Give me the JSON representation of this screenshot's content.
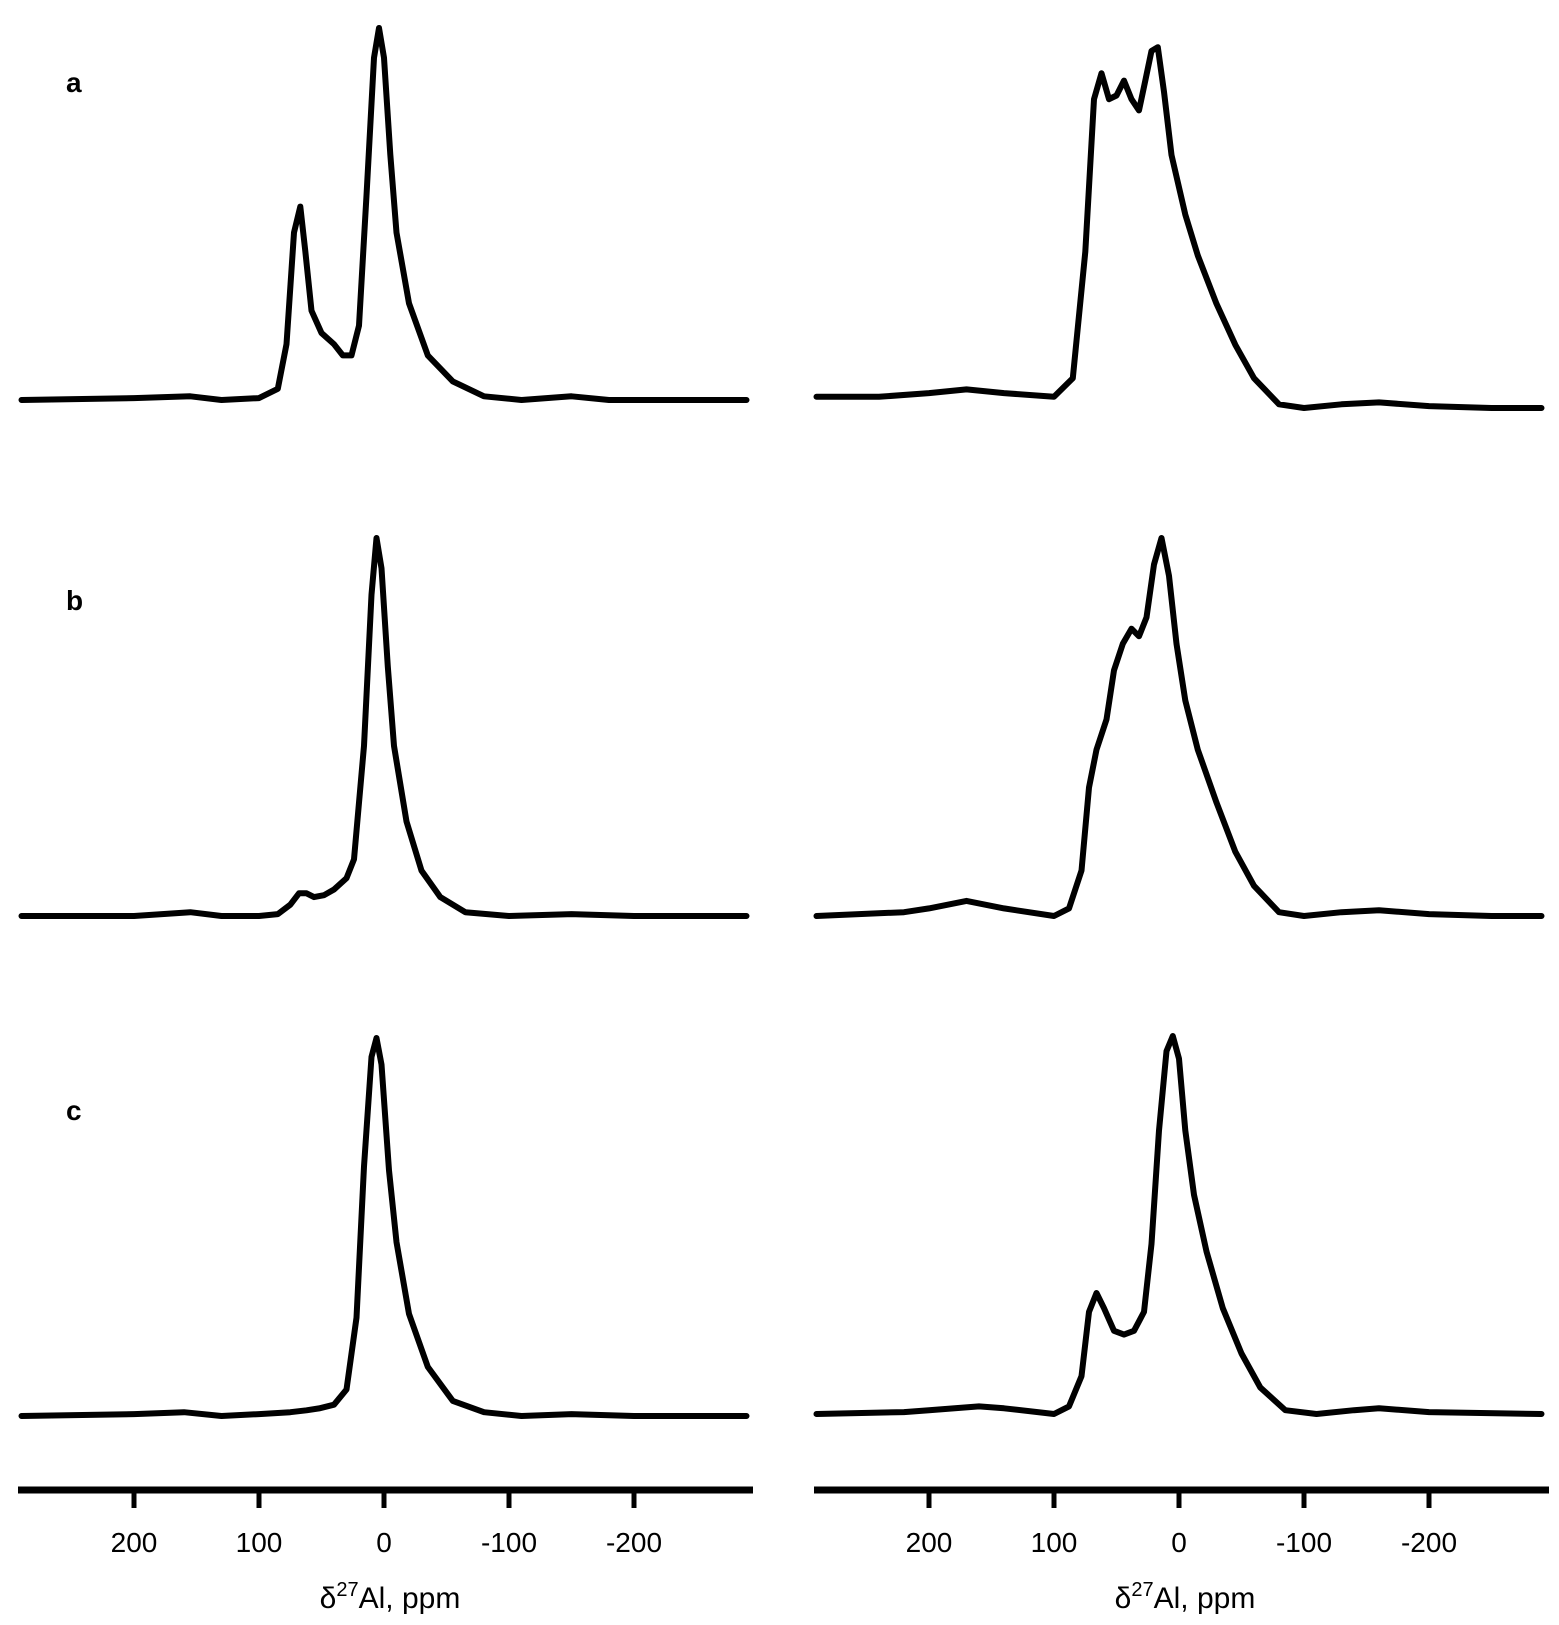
{
  "figure": {
    "panel_labels": [
      "a",
      "b",
      "c"
    ]
  },
  "chart_data": [
    {
      "type": "line",
      "panel": "a",
      "column": "left",
      "xlabel": "δ27Al, ppm",
      "xlim": [
        290,
        -290
      ],
      "x_reversed": true,
      "ticks": [
        200,
        100,
        0,
        -100,
        -200
      ],
      "tick_labels": [
        "200",
        "100",
        "0",
        "-100",
        "-200"
      ],
      "series": [
        {
          "values": [
            [
              290,
              0
            ],
            [
              200,
              0.005
            ],
            [
              155,
              0.01
            ],
            [
              130,
              0
            ],
            [
              100,
              0.005
            ],
            [
              85,
              0.03
            ],
            [
              78,
              0.15
            ],
            [
              72,
              0.45
            ],
            [
              67,
              0.52
            ],
            [
              63,
              0.4
            ],
            [
              58,
              0.24
            ],
            [
              50,
              0.18
            ],
            [
              40,
              0.15
            ],
            [
              33,
              0.12
            ],
            [
              26,
              0.12
            ],
            [
              20,
              0.2
            ],
            [
              14,
              0.55
            ],
            [
              8,
              0.92
            ],
            [
              4,
              1.0
            ],
            [
              0,
              0.92
            ],
            [
              -5,
              0.66
            ],
            [
              -10,
              0.45
            ],
            [
              -20,
              0.26
            ],
            [
              -35,
              0.12
            ],
            [
              -55,
              0.05
            ],
            [
              -80,
              0.01
            ],
            [
              -110,
              0
            ],
            [
              -150,
              0.01
            ],
            [
              -180,
              0
            ],
            [
              -290,
              0
            ]
          ]
        }
      ]
    },
    {
      "type": "line",
      "panel": "a",
      "column": "right",
      "xlabel": "δ27Al, ppm",
      "xlim": [
        290,
        -290
      ],
      "x_reversed": true,
      "ticks": [
        200,
        100,
        0,
        -100,
        -200
      ],
      "tick_labels": [
        "200",
        "100",
        "0",
        "-100",
        "-200"
      ],
      "series": [
        {
          "values": [
            [
              290,
              0.03
            ],
            [
              240,
              0.03
            ],
            [
              200,
              0.04
            ],
            [
              170,
              0.05
            ],
            [
              140,
              0.04
            ],
            [
              100,
              0.03
            ],
            [
              85,
              0.08
            ],
            [
              75,
              0.42
            ],
            [
              68,
              0.83
            ],
            [
              62,
              0.9
            ],
            [
              56,
              0.83
            ],
            [
              50,
              0.84
            ],
            [
              44,
              0.88
            ],
            [
              38,
              0.83
            ],
            [
              32,
              0.8
            ],
            [
              27,
              0.88
            ],
            [
              22,
              0.96
            ],
            [
              17,
              0.97
            ],
            [
              12,
              0.85
            ],
            [
              6,
              0.68
            ],
            [
              -5,
              0.52
            ],
            [
              -15,
              0.41
            ],
            [
              -30,
              0.28
            ],
            [
              -45,
              0.17
            ],
            [
              -60,
              0.08
            ],
            [
              -80,
              0.01
            ],
            [
              -100,
              0
            ],
            [
              -130,
              0.01
            ],
            [
              -160,
              0.015
            ],
            [
              -200,
              0.005
            ],
            [
              -250,
              0
            ],
            [
              -290,
              0
            ]
          ]
        }
      ]
    },
    {
      "type": "line",
      "panel": "b",
      "column": "left",
      "xlabel": "δ27Al, ppm",
      "xlim": [
        290,
        -290
      ],
      "x_reversed": true,
      "ticks": [
        200,
        100,
        0,
        -100,
        -200
      ],
      "tick_labels": [
        "200",
        "100",
        "0",
        "-100",
        "-200"
      ],
      "series": [
        {
          "values": [
            [
              290,
              0
            ],
            [
              200,
              0
            ],
            [
              155,
              0.01
            ],
            [
              130,
              0
            ],
            [
              100,
              0
            ],
            [
              85,
              0.005
            ],
            [
              75,
              0.03
            ],
            [
              68,
              0.06
            ],
            [
              62,
              0.06
            ],
            [
              56,
              0.05
            ],
            [
              48,
              0.055
            ],
            [
              40,
              0.07
            ],
            [
              30,
              0.1
            ],
            [
              24,
              0.15
            ],
            [
              16,
              0.45
            ],
            [
              10,
              0.85
            ],
            [
              6,
              1.0
            ],
            [
              2,
              0.92
            ],
            [
              -3,
              0.66
            ],
            [
              -8,
              0.45
            ],
            [
              -18,
              0.25
            ],
            [
              -30,
              0.12
            ],
            [
              -45,
              0.05
            ],
            [
              -65,
              0.01
            ],
            [
              -100,
              0
            ],
            [
              -150,
              0.005
            ],
            [
              -200,
              0
            ],
            [
              -290,
              0
            ]
          ]
        }
      ]
    },
    {
      "type": "line",
      "panel": "b",
      "column": "right",
      "xlabel": "δ27Al, ppm",
      "xlim": [
        290,
        -290
      ],
      "x_reversed": true,
      "ticks": [
        200,
        100,
        0,
        -100,
        -200
      ],
      "tick_labels": [
        "200",
        "100",
        "0",
        "-100",
        "-200"
      ],
      "series": [
        {
          "values": [
            [
              290,
              0
            ],
            [
              220,
              0.01
            ],
            [
              200,
              0.02
            ],
            [
              170,
              0.04
            ],
            [
              140,
              0.02
            ],
            [
              100,
              0
            ],
            [
              88,
              0.02
            ],
            [
              78,
              0.12
            ],
            [
              72,
              0.34
            ],
            [
              66,
              0.44
            ],
            [
              58,
              0.52
            ],
            [
              52,
              0.65
            ],
            [
              45,
              0.72
            ],
            [
              38,
              0.76
            ],
            [
              32,
              0.74
            ],
            [
              26,
              0.79
            ],
            [
              20,
              0.93
            ],
            [
              14,
              1.0
            ],
            [
              8,
              0.9
            ],
            [
              2,
              0.72
            ],
            [
              -5,
              0.57
            ],
            [
              -15,
              0.44
            ],
            [
              -30,
              0.3
            ],
            [
              -45,
              0.17
            ],
            [
              -60,
              0.08
            ],
            [
              -80,
              0.01
            ],
            [
              -100,
              0
            ],
            [
              -130,
              0.01
            ],
            [
              -160,
              0.015
            ],
            [
              -200,
              0.005
            ],
            [
              -250,
              0
            ],
            [
              -290,
              0
            ]
          ]
        }
      ]
    },
    {
      "type": "line",
      "panel": "c",
      "column": "left",
      "xlabel": "δ27Al, ppm",
      "xlim": [
        290,
        -290
      ],
      "x_reversed": true,
      "ticks": [
        200,
        100,
        0,
        -100,
        -200
      ],
      "tick_labels": [
        "200",
        "100",
        "0",
        "-100",
        "-200"
      ],
      "series": [
        {
          "values": [
            [
              290,
              0
            ],
            [
              200,
              0.005
            ],
            [
              160,
              0.01
            ],
            [
              130,
              0
            ],
            [
              100,
              0.005
            ],
            [
              75,
              0.01
            ],
            [
              62,
              0.015
            ],
            [
              52,
              0.02
            ],
            [
              40,
              0.03
            ],
            [
              30,
              0.07
            ],
            [
              22,
              0.26
            ],
            [
              16,
              0.66
            ],
            [
              10,
              0.95
            ],
            [
              6,
              1.0
            ],
            [
              2,
              0.93
            ],
            [
              -4,
              0.65
            ],
            [
              -10,
              0.46
            ],
            [
              -20,
              0.27
            ],
            [
              -35,
              0.13
            ],
            [
              -55,
              0.04
            ],
            [
              -80,
              0.01
            ],
            [
              -110,
              0
            ],
            [
              -150,
              0.005
            ],
            [
              -200,
              0
            ],
            [
              -290,
              0
            ]
          ]
        }
      ]
    },
    {
      "type": "line",
      "panel": "c",
      "column": "right",
      "xlabel": "δ27Al, ppm",
      "xlim": [
        290,
        -290
      ],
      "x_reversed": true,
      "ticks": [
        200,
        100,
        0,
        -100,
        -200
      ],
      "tick_labels": [
        "200",
        "100",
        "0",
        "-100",
        "-200"
      ],
      "series": [
        {
          "values": [
            [
              290,
              0
            ],
            [
              220,
              0.005
            ],
            [
              200,
              0.01
            ],
            [
              160,
              0.02
            ],
            [
              140,
              0.015
            ],
            [
              100,
              0
            ],
            [
              88,
              0.02
            ],
            [
              78,
              0.1
            ],
            [
              72,
              0.27
            ],
            [
              66,
              0.32
            ],
            [
              60,
              0.28
            ],
            [
              52,
              0.22
            ],
            [
              44,
              0.21
            ],
            [
              36,
              0.22
            ],
            [
              28,
              0.27
            ],
            [
              22,
              0.45
            ],
            [
              16,
              0.75
            ],
            [
              10,
              0.96
            ],
            [
              5,
              1.0
            ],
            [
              0,
              0.94
            ],
            [
              -5,
              0.75
            ],
            [
              -12,
              0.58
            ],
            [
              -22,
              0.43
            ],
            [
              -35,
              0.28
            ],
            [
              -50,
              0.16
            ],
            [
              -65,
              0.07
            ],
            [
              -85,
              0.01
            ],
            [
              -110,
              0
            ],
            [
              -140,
              0.01
            ],
            [
              -160,
              0.015
            ],
            [
              -200,
              0.005
            ],
            [
              -290,
              0
            ]
          ]
        }
      ]
    }
  ]
}
